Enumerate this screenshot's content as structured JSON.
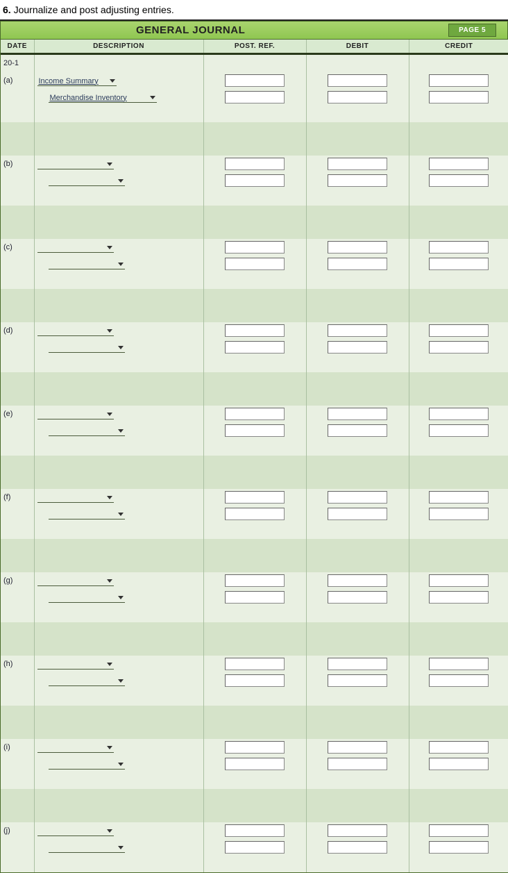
{
  "instruction": {
    "num": "6.",
    "text": "Journalize and post adjusting entries."
  },
  "journal": {
    "title": "GENERAL JOURNAL",
    "page_label": "PAGE 5",
    "columns": {
      "date": "DATE",
      "description": "DESCRIPTION",
      "post_ref": "POST. REF.",
      "debit": "DEBIT",
      "credit": "CREDIT"
    },
    "year": "20-1",
    "entries": [
      {
        "label": "(a)",
        "row1": {
          "account": "Income Summary",
          "post_ref": "",
          "debit": "",
          "credit": ""
        },
        "row2": {
          "account": "Merchandise Inventory",
          "post_ref": "",
          "debit": "",
          "credit": ""
        }
      },
      {
        "label": "(b)",
        "row1": {
          "account": "",
          "post_ref": "",
          "debit": "",
          "credit": ""
        },
        "row2": {
          "account": "",
          "post_ref": "",
          "debit": "",
          "credit": ""
        }
      },
      {
        "label": "(c)",
        "row1": {
          "account": "",
          "post_ref": "",
          "debit": "",
          "credit": ""
        },
        "row2": {
          "account": "",
          "post_ref": "",
          "debit": "",
          "credit": ""
        }
      },
      {
        "label": "(d)",
        "row1": {
          "account": "",
          "post_ref": "",
          "debit": "",
          "credit": ""
        },
        "row2": {
          "account": "",
          "post_ref": "",
          "debit": "",
          "credit": ""
        }
      },
      {
        "label": "(e)",
        "row1": {
          "account": "",
          "post_ref": "",
          "debit": "",
          "credit": ""
        },
        "row2": {
          "account": "",
          "post_ref": "",
          "debit": "",
          "credit": ""
        }
      },
      {
        "label": "(f)",
        "row1": {
          "account": "",
          "post_ref": "",
          "debit": "",
          "credit": ""
        },
        "row2": {
          "account": "",
          "post_ref": "",
          "debit": "",
          "credit": ""
        }
      },
      {
        "label": "(g)",
        "row1": {
          "account": "",
          "post_ref": "",
          "debit": "",
          "credit": ""
        },
        "row2": {
          "account": "",
          "post_ref": "",
          "debit": "",
          "credit": ""
        }
      },
      {
        "label": "(h)",
        "row1": {
          "account": "",
          "post_ref": "",
          "debit": "",
          "credit": ""
        },
        "row2": {
          "account": "",
          "post_ref": "",
          "debit": "",
          "credit": ""
        }
      },
      {
        "label": "(i)",
        "row1": {
          "account": "",
          "post_ref": "",
          "debit": "",
          "credit": ""
        },
        "row2": {
          "account": "",
          "post_ref": "",
          "debit": "",
          "credit": ""
        }
      },
      {
        "label": "(j)",
        "row1": {
          "account": "",
          "post_ref": "",
          "debit": "",
          "credit": ""
        },
        "row2": {
          "account": "",
          "post_ref": "",
          "debit": "",
          "credit": ""
        }
      }
    ]
  },
  "colors": {
    "header_grad_top": "#a9d46e",
    "header_grad_bot": "#8fc651",
    "light_row": "#e9f0e2",
    "dark_row": "#d5e3c9",
    "border": "#a9bfa0"
  }
}
